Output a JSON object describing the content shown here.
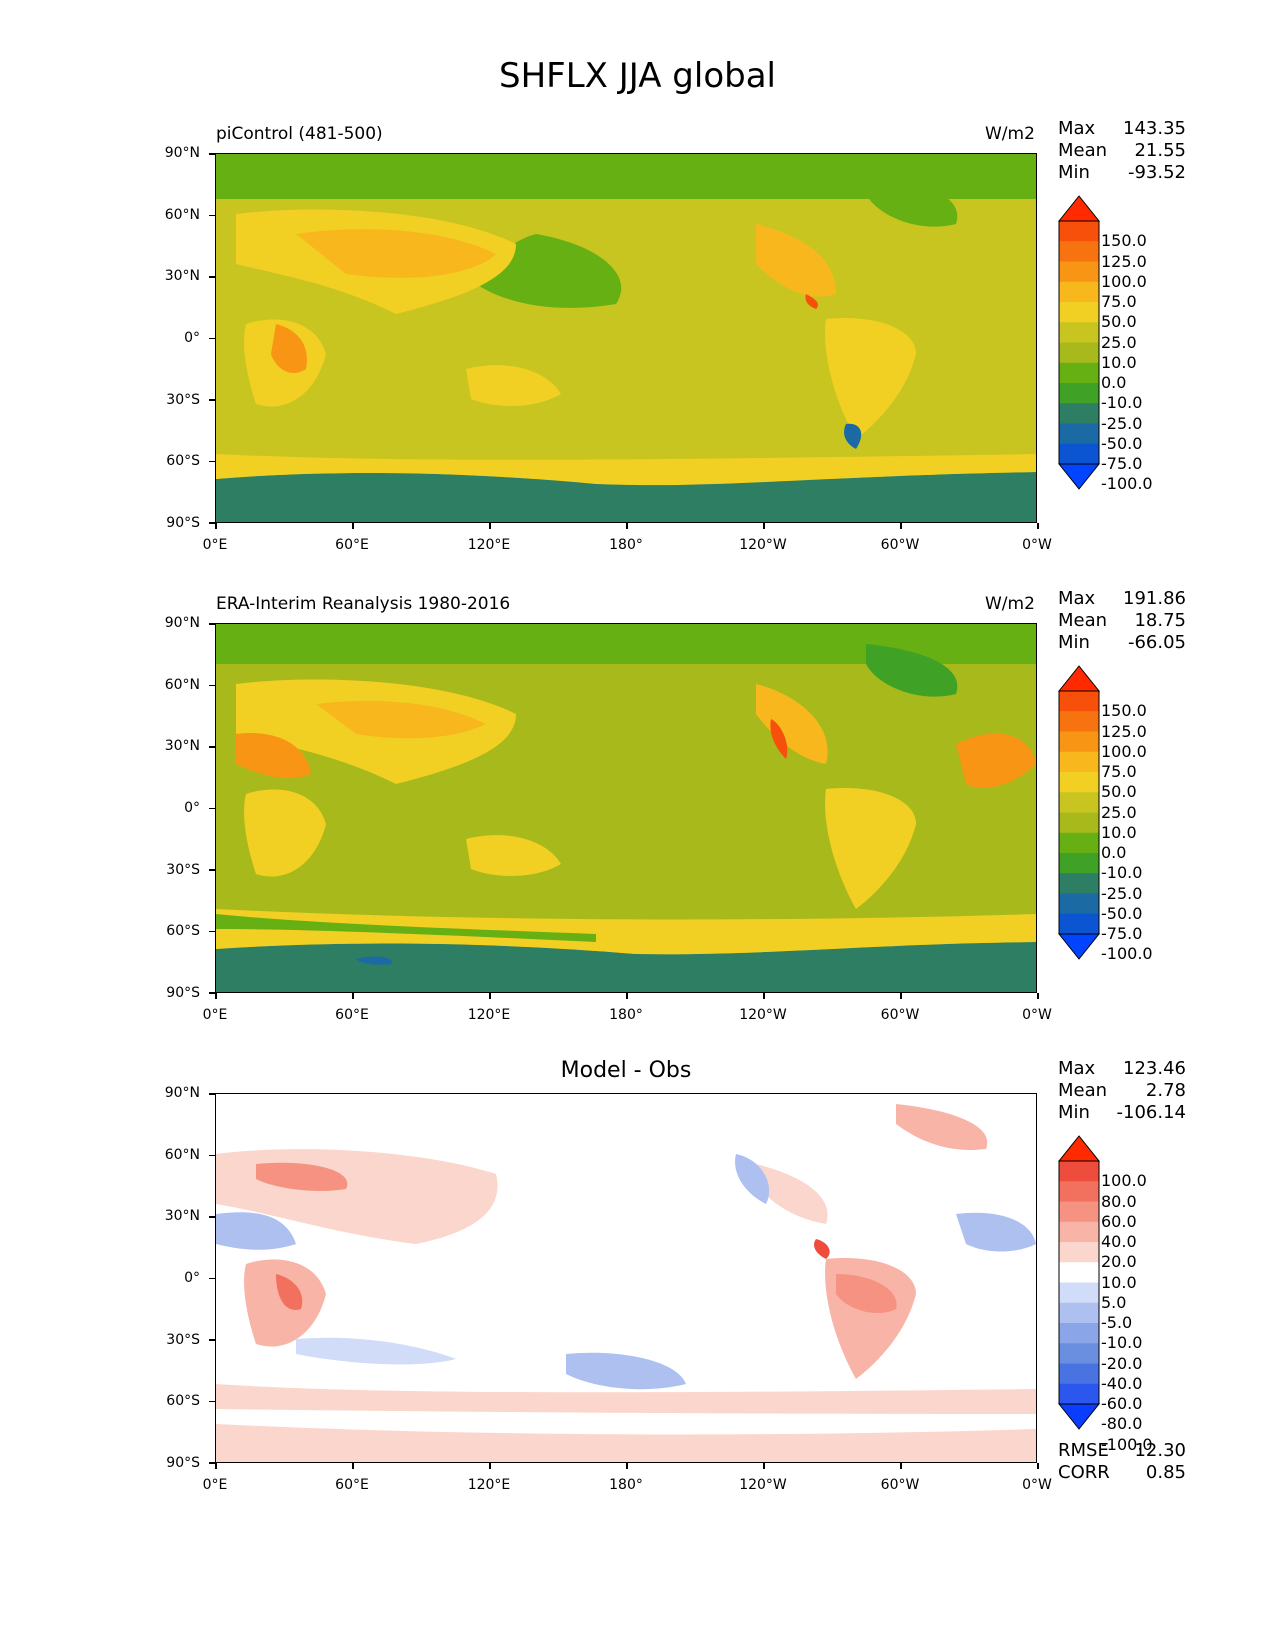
{
  "title": "SHFLX JJA global",
  "axes": {
    "lat_labels": [
      "90°N",
      "60°N",
      "30°N",
      "0°",
      "30°S",
      "60°S",
      "90°S"
    ],
    "lon_labels": [
      "0°E",
      "60°E",
      "120°E",
      "180°",
      "120°W",
      "60°W",
      "0°W"
    ]
  },
  "colors": {
    "full_scale": [
      "#0044ff",
      "#0b55d3",
      "#1b6aa4",
      "#2e7e63",
      "#3fa226",
      "#67b014",
      "#a8ba1b",
      "#c8c520",
      "#f2cf23",
      "#f8b81d",
      "#f89514",
      "#f7730f",
      "#f6500a",
      "#ff2a00"
    ],
    "diff_scale": [
      "#0a3dff",
      "#2b57ef",
      "#4a73e2",
      "#6a8ee0",
      "#8ba6e8",
      "#adc0f0",
      "#d0dcf8",
      "#ffffff",
      "#fbd6cc",
      "#f8b4a6",
      "#f59282",
      "#f2705e",
      "#ee4c3c",
      "#ff2a00"
    ]
  },
  "panels": [
    {
      "label_left": "piControl (481-500)",
      "label_right": "W/m2",
      "stats": {
        "max_label": "Max",
        "max": "143.35",
        "mean_label": "Mean",
        "mean": "21.55",
        "min_label": "Min",
        "min": "-93.52"
      },
      "colorbar_labels": [
        "150.0",
        "125.0",
        "100.0",
        "75.0",
        "50.0",
        "25.0",
        "10.0",
        "0.0",
        "-10.0",
        "-25.0",
        "-50.0",
        "-75.0",
        "-100.0"
      ],
      "scale": "full"
    },
    {
      "label_left": "ERA-Interim Reanalysis 1980-2016",
      "label_right": "W/m2",
      "stats": {
        "max_label": "Max",
        "max": "191.86",
        "mean_label": "Mean",
        "mean": "18.75",
        "min_label": "Min",
        "min": "-66.05"
      },
      "colorbar_labels": [
        "150.0",
        "125.0",
        "100.0",
        "75.0",
        "50.0",
        "25.0",
        "10.0",
        "0.0",
        "-10.0",
        "-25.0",
        "-50.0",
        "-75.0",
        "-100.0"
      ],
      "scale": "full"
    },
    {
      "label_center": "Model - Obs",
      "stats": {
        "max_label": "Max",
        "max": "123.46",
        "mean_label": "Mean",
        "mean": "2.78",
        "min_label": "Min",
        "min": "-106.14"
      },
      "colorbar_labels": [
        "100.0",
        "80.0",
        "60.0",
        "40.0",
        "20.0",
        "10.0",
        "5.0",
        "-5.0",
        "-10.0",
        "-20.0",
        "-40.0",
        "-60.0",
        "-80.0",
        "-100.0"
      ],
      "scale": "diff",
      "metrics": {
        "rmse_label": "RMSE",
        "rmse": "12.30",
        "corr_label": "CORR",
        "corr": "0.85"
      }
    }
  ]
}
